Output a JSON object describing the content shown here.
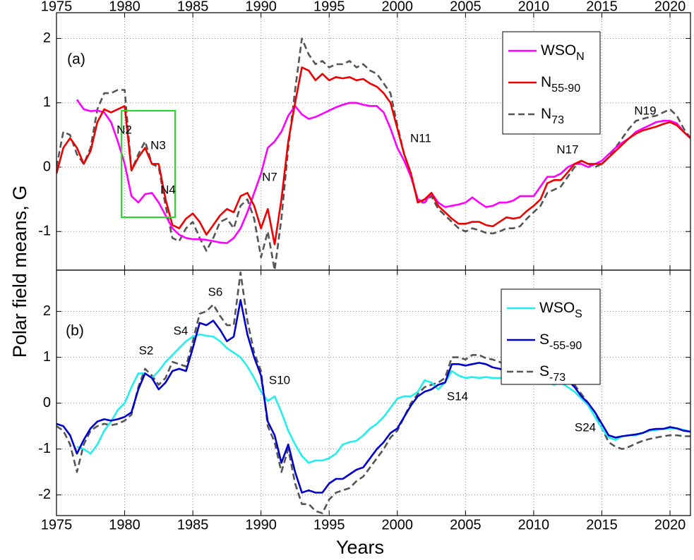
{
  "ylabel": "Polar field means, G",
  "xlabel": "Years",
  "chart_data": [
    {
      "type": "line",
      "panel_label": "(a)",
      "legend": "upper right",
      "grid": true,
      "xtick_labels": "top",
      "xlim": [
        1975,
        2021.5
      ],
      "xticks": [
        1975,
        1980,
        1985,
        1990,
        1995,
        2000,
        2005,
        2010,
        2015,
        2020
      ],
      "ylim": [
        -1.6,
        2.4
      ],
      "yticks": [
        -1,
        0,
        1,
        2
      ],
      "x": [
        1975,
        1975.5,
        1976,
        1976.5,
        1977,
        1977.5,
        1978,
        1978.5,
        1979,
        1979.5,
        1980,
        1980.5,
        1981,
        1981.5,
        1982,
        1982.5,
        1983,
        1983.5,
        1984,
        1984.5,
        1985,
        1985.5,
        1986,
        1986.5,
        1987,
        1987.5,
        1988,
        1988.5,
        1989,
        1989.5,
        1990,
        1990.5,
        1991,
        1991.5,
        1992,
        1992.5,
        1993,
        1993.5,
        1994,
        1994.5,
        1995,
        1995.5,
        1996,
        1996.5,
        1997,
        1997.5,
        1998,
        1998.5,
        1999,
        1999.5,
        2000,
        2000.5,
        2001,
        2001.5,
        2002,
        2002.5,
        2003,
        2003.5,
        2004,
        2004.5,
        2005,
        2005.5,
        2006,
        2006.5,
        2007,
        2007.5,
        2008,
        2008.5,
        2009,
        2009.5,
        2010,
        2010.5,
        2011,
        2011.5,
        2012,
        2012.5,
        2013,
        2013.5,
        2014,
        2014.5,
        2015,
        2015.5,
        2016,
        2016.5,
        2017,
        2017.5,
        2018,
        2018.5,
        2019,
        2019.5,
        2020,
        2020.5,
        2021,
        2021.5
      ],
      "series": [
        {
          "name": "WSO",
          "subscript": "N",
          "color": "#ff00ff",
          "dash": false,
          "values": [
            null,
            null,
            null,
            1.05,
            0.9,
            0.87,
            0.88,
            0.85,
            0.7,
            0.4,
            0.05,
            -0.45,
            -0.55,
            -0.42,
            -0.4,
            -0.55,
            -0.75,
            -0.95,
            -1.05,
            -1.1,
            -1.12,
            -1.12,
            -1.13,
            -1.15,
            -1.17,
            -1.18,
            -1.1,
            -0.95,
            -0.7,
            -0.4,
            -0.1,
            0.3,
            0.4,
            0.55,
            0.8,
            0.95,
            0.82,
            0.75,
            0.78,
            0.83,
            0.88,
            0.93,
            0.97,
            1.0,
            1.0,
            0.97,
            0.95,
            0.95,
            0.85,
            0.6,
            0.3,
            0.1,
            -0.15,
            -0.5,
            -0.55,
            -0.4,
            -0.55,
            -0.62,
            -0.6,
            -0.58,
            -0.55,
            -0.47,
            -0.55,
            -0.62,
            -0.6,
            -0.55,
            -0.55,
            -0.52,
            -0.45,
            -0.45,
            -0.45,
            -0.3,
            -0.15,
            -0.15,
            -0.1,
            0.0,
            0.05,
            0.05,
            0.0,
            0.05,
            0.1,
            0.2,
            0.3,
            0.38,
            0.45,
            0.55,
            0.6,
            0.65,
            0.7,
            0.72,
            0.72,
            0.68,
            0.55,
            0.45
          ]
        },
        {
          "name": "N",
          "subscript": "55-90",
          "color": "#ee0000",
          "dash": false,
          "values": [
            -0.1,
            0.3,
            0.45,
            0.3,
            0.05,
            0.25,
            0.7,
            0.9,
            0.85,
            0.9,
            0.95,
            -0.05,
            0.15,
            0.3,
            0.05,
            0.05,
            -0.5,
            -0.9,
            -0.95,
            -0.8,
            -0.72,
            -0.85,
            -1.05,
            -0.9,
            -0.75,
            -0.65,
            -0.7,
            -0.45,
            -0.4,
            -0.6,
            -0.95,
            -0.65,
            -1.2,
            -0.5,
            0.4,
            1.0,
            1.55,
            1.5,
            1.35,
            1.45,
            1.35,
            1.4,
            1.38,
            1.4,
            1.35,
            1.37,
            1.3,
            1.25,
            1.15,
            1.0,
            0.6,
            0.2,
            -0.1,
            -0.55,
            -0.5,
            -0.4,
            -0.6,
            -0.7,
            -0.8,
            -0.88,
            -0.88,
            -0.85,
            -0.85,
            -0.9,
            -0.92,
            -0.85,
            -0.78,
            -0.8,
            -0.78,
            -0.68,
            -0.6,
            -0.5,
            -0.25,
            -0.2,
            -0.2,
            -0.08,
            0.05,
            0.1,
            0.05,
            0.05,
            0.05,
            0.15,
            0.25,
            0.35,
            0.45,
            0.52,
            0.57,
            0.6,
            0.63,
            0.67,
            0.7,
            0.65,
            0.55,
            0.45
          ]
        },
        {
          "name": "N",
          "subscript": "73",
          "color": "#555555",
          "dash": true,
          "values": [
            0.0,
            0.55,
            0.5,
            0.2,
            0.05,
            0.3,
            0.9,
            1.15,
            1.15,
            1.2,
            1.2,
            -0.05,
            0.2,
            0.4,
            0.05,
            0.0,
            -0.6,
            -1.1,
            -1.15,
            -0.95,
            -0.85,
            -1.1,
            -1.3,
            -1.1,
            -0.85,
            -0.8,
            -0.95,
            -0.6,
            -0.5,
            -0.8,
            -1.4,
            -1.0,
            -1.6,
            -0.8,
            0.3,
            1.2,
            2.0,
            1.75,
            1.6,
            1.65,
            1.55,
            1.6,
            1.6,
            1.65,
            1.55,
            1.6,
            1.5,
            1.45,
            1.3,
            1.15,
            0.65,
            0.2,
            -0.1,
            -0.55,
            -0.55,
            -0.45,
            -0.65,
            -0.75,
            -0.85,
            -0.95,
            -1.0,
            -0.95,
            -0.98,
            -1.02,
            -1.03,
            -1.0,
            -0.95,
            -0.95,
            -0.92,
            -0.8,
            -0.7,
            -0.6,
            -0.4,
            -0.35,
            -0.3,
            -0.15,
            0.0,
            0.1,
            0.05,
            0.0,
            0.05,
            0.15,
            0.3,
            0.45,
            0.6,
            0.72,
            0.75,
            0.78,
            0.8,
            0.85,
            0.9,
            0.8,
            0.6,
            0.45
          ]
        }
      ],
      "annotations": [
        "N2",
        "N3",
        "N4",
        "N7",
        "N11",
        "N17",
        "N19"
      ]
    },
    {
      "type": "line",
      "panel_label": "(b)",
      "legend": "upper right",
      "grid": true,
      "xtick_labels": "bottom",
      "xlim": [
        1975,
        2021.5
      ],
      "xticks": [
        1975,
        1980,
        1985,
        1990,
        1995,
        2000,
        2005,
        2010,
        2015,
        2020
      ],
      "ylim": [
        -2.45,
        2.9
      ],
      "yticks": [
        -2,
        -1,
        0,
        1,
        2
      ],
      "x": [
        1975,
        1975.5,
        1976,
        1976.5,
        1977,
        1977.5,
        1978,
        1978.5,
        1979,
        1979.5,
        1980,
        1980.5,
        1981,
        1981.5,
        1982,
        1982.5,
        1983,
        1983.5,
        1984,
        1984.5,
        1985,
        1985.5,
        1986,
        1986.5,
        1987,
        1987.5,
        1988,
        1988.5,
        1989,
        1989.5,
        1990,
        1990.5,
        1991,
        1991.5,
        1992,
        1992.5,
        1993,
        1993.5,
        1994,
        1994.5,
        1995,
        1995.5,
        1996,
        1996.5,
        1997,
        1997.5,
        1998,
        1998.5,
        1999,
        1999.5,
        2000,
        2000.5,
        2001,
        2001.5,
        2002,
        2002.5,
        2003,
        2003.5,
        2004,
        2004.5,
        2005,
        2005.5,
        2006,
        2006.5,
        2007,
        2007.5,
        2008,
        2008.5,
        2009,
        2009.5,
        2010,
        2010.5,
        2011,
        2011.5,
        2012,
        2012.5,
        2013,
        2013.5,
        2014,
        2014.5,
        2015,
        2015.5,
        2016,
        2016.5,
        2017,
        2017.5,
        2018,
        2018.5,
        2019,
        2019.5,
        2020,
        2020.5,
        2021,
        2021.5
      ],
      "series": [
        {
          "name": "WSO",
          "subscript": "S",
          "color": "#22eeee",
          "dash": false,
          "values": [
            null,
            null,
            null,
            -0.95,
            -1.0,
            -1.1,
            -0.9,
            -0.6,
            -0.4,
            -0.15,
            0.0,
            0.35,
            0.65,
            0.65,
            0.55,
            0.7,
            0.9,
            1.05,
            1.2,
            1.35,
            1.45,
            1.5,
            1.47,
            1.45,
            1.35,
            1.2,
            1.1,
            1.0,
            0.8,
            0.55,
            0.25,
            0.05,
            0.15,
            -0.2,
            -0.6,
            -0.9,
            -1.15,
            -1.3,
            -1.25,
            -1.25,
            -1.2,
            -1.1,
            -0.9,
            -0.85,
            -0.82,
            -0.7,
            -0.55,
            -0.45,
            -0.3,
            -0.1,
            0.1,
            0.15,
            0.15,
            0.25,
            0.5,
            0.45,
            0.3,
            0.45,
            0.7,
            0.6,
            0.55,
            0.57,
            0.55,
            0.57,
            0.55,
            0.55,
            0.55,
            0.55,
            0.52,
            0.5,
            0.48,
            0.45,
            0.45,
            0.4,
            0.45,
            0.35,
            0.25,
            0.1,
            -0.05,
            -0.3,
            -0.55,
            -0.75,
            -0.8,
            -0.72,
            -0.7,
            -0.7,
            -0.65,
            -0.6,
            -0.58,
            -0.56,
            -0.55,
            -0.55,
            -0.58,
            -0.62
          ]
        },
        {
          "name": "S",
          "subscript": "-55-90",
          "color": "#0000cc",
          "dash": false,
          "values": [
            -0.45,
            -0.5,
            -0.7,
            -1.1,
            -0.8,
            -0.55,
            -0.4,
            -0.35,
            -0.38,
            -0.35,
            -0.3,
            -0.2,
            0.3,
            0.65,
            0.55,
            0.3,
            0.45,
            0.7,
            0.75,
            0.7,
            1.2,
            1.75,
            1.7,
            1.8,
            1.6,
            1.35,
            1.45,
            2.25,
            1.5,
            1.0,
            0.6,
            -0.4,
            -0.7,
            -1.3,
            -0.9,
            -1.5,
            -1.95,
            -1.9,
            -1.95,
            -1.95,
            -1.75,
            -1.65,
            -1.65,
            -1.55,
            -1.45,
            -1.4,
            -1.2,
            -1.0,
            -0.85,
            -0.65,
            -0.55,
            -0.3,
            -0.05,
            0.15,
            0.25,
            0.3,
            0.4,
            0.45,
            0.85,
            0.85,
            0.82,
            0.85,
            0.88,
            0.85,
            0.78,
            0.75,
            0.7,
            0.72,
            0.68,
            0.65,
            0.6,
            0.55,
            0.6,
            0.55,
            0.6,
            0.5,
            0.35,
            0.15,
            0.0,
            -0.2,
            -0.45,
            -0.7,
            -0.75,
            -0.72,
            -0.7,
            -0.68,
            -0.65,
            -0.58,
            -0.56,
            -0.56,
            -0.52,
            -0.55,
            -0.6,
            -0.62
          ]
        },
        {
          "name": "S",
          "subscript": "-73",
          "color": "#555555",
          "dash": true,
          "values": [
            -0.5,
            -0.6,
            -0.9,
            -1.5,
            -0.9,
            -0.6,
            -0.5,
            -0.45,
            -0.48,
            -0.45,
            -0.38,
            -0.25,
            0.35,
            0.75,
            0.6,
            0.4,
            0.55,
            0.9,
            0.85,
            0.8,
            1.35,
            1.95,
            2.0,
            2.15,
            1.9,
            1.7,
            1.7,
            2.85,
            1.8,
            1.1,
            0.7,
            -0.5,
            -0.85,
            -1.5,
            -1.0,
            -1.75,
            -2.2,
            -2.2,
            -2.35,
            -2.4,
            -2.1,
            -1.95,
            -1.9,
            -1.85,
            -1.7,
            -1.6,
            -1.4,
            -1.2,
            -1.0,
            -0.75,
            -0.6,
            -0.3,
            0.0,
            0.2,
            0.35,
            0.4,
            0.45,
            0.55,
            1.0,
            1.0,
            0.95,
            1.05,
            1.05,
            0.98,
            0.95,
            0.9,
            0.82,
            0.85,
            0.8,
            0.78,
            0.72,
            0.65,
            0.7,
            0.62,
            0.75,
            0.6,
            0.4,
            0.2,
            0.0,
            -0.2,
            -0.55,
            -0.85,
            -0.95,
            -1.0,
            -0.95,
            -0.88,
            -0.82,
            -0.78,
            -0.75,
            -0.72,
            -0.7,
            -0.7,
            -0.72,
            -0.72
          ]
        }
      ],
      "annotations": [
        "S2",
        "S4",
        "S6",
        "S10",
        "S14",
        "S24"
      ]
    }
  ]
}
